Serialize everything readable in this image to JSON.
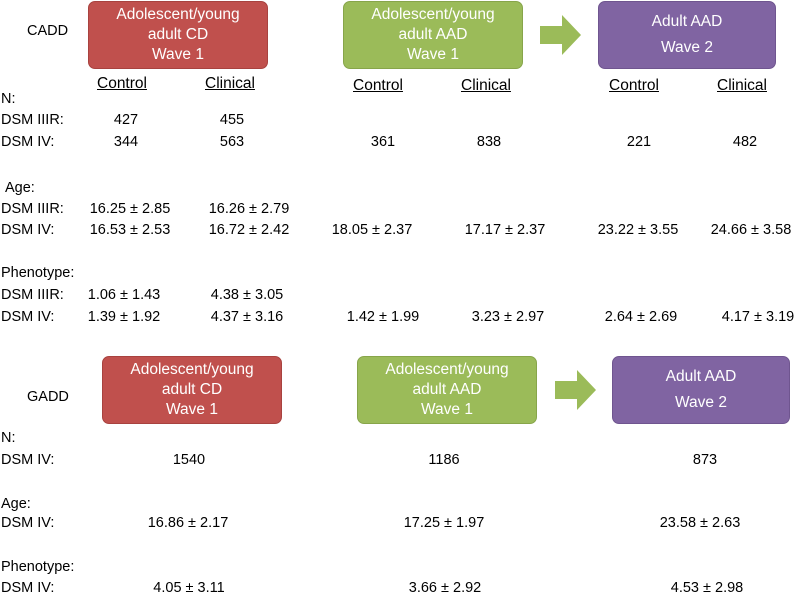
{
  "cadd": {
    "label": "CADD",
    "box1": {
      "line1": "Adolescent/young",
      "line2": "adult CD",
      "line3": "Wave 1"
    },
    "box2": {
      "line1": "Adolescent/young",
      "line2": "adult AAD",
      "line3": "Wave 1"
    },
    "box3": {
      "line1": "Adult AAD",
      "line2": "Wave 2"
    },
    "headers": [
      "Control",
      "Clinical",
      "Control",
      "Clinical",
      "Control",
      "Clinical"
    ],
    "n_label": "N:",
    "age_label": "Age:",
    "phenotype_label": "Phenotype:",
    "row_dsm3": "DSM IIIR:",
    "row_dsm4": "DSM IV:",
    "n": {
      "dsm3": [
        "427",
        "455"
      ],
      "dsm4": [
        "344",
        "563",
        "361",
        "838",
        "221",
        "482"
      ]
    },
    "age": {
      "dsm3": [
        "16.25 ± 2.85",
        "16.26 ± 2.79"
      ],
      "dsm4": [
        "16.53 ± 2.53",
        "16.72 ± 2.42",
        "18.05 ± 2.37",
        "17.17 ± 2.37",
        "23.22 ± 3.55",
        "24.66 ± 3.58"
      ]
    },
    "phenotype": {
      "dsm3": [
        "1.06 ± 1.43",
        "4.38 ± 3.05"
      ],
      "dsm4": [
        "1.39 ± 1.92",
        "4.37 ± 3.16",
        "1.42 ± 1.99",
        "3.23 ± 2.97",
        "2.64 ± 2.69",
        "4.17 ± 3.19"
      ]
    }
  },
  "gadd": {
    "label": "GADD",
    "box1": {
      "line1": "Adolescent/young",
      "line2": "adult CD",
      "line3": "Wave 1"
    },
    "box2": {
      "line1": "Adolescent/young",
      "line2": "adult AAD",
      "line3": "Wave 1"
    },
    "box3": {
      "line1": "Adult AAD",
      "line2": "Wave 2"
    },
    "n_label": "N:",
    "age_label": "Age:",
    "phenotype_label": "Phenotype:",
    "row_dsm4": "DSM IV:",
    "n": [
      "1540",
      "1186",
      "873"
    ],
    "age": [
      "16.86 ± 2.17",
      "17.25 ± 1.97",
      "23.58 ± 2.63"
    ],
    "phenotype": [
      "4.05 ± 3.11",
      "3.66 ± 2.92",
      "4.53 ± 2.98"
    ]
  },
  "colors": {
    "cd_box": "#c0504d",
    "aad_wave1_box": "#9bbb59",
    "aad_wave2_box": "#8064a2",
    "arrow": "#9bbb59"
  }
}
